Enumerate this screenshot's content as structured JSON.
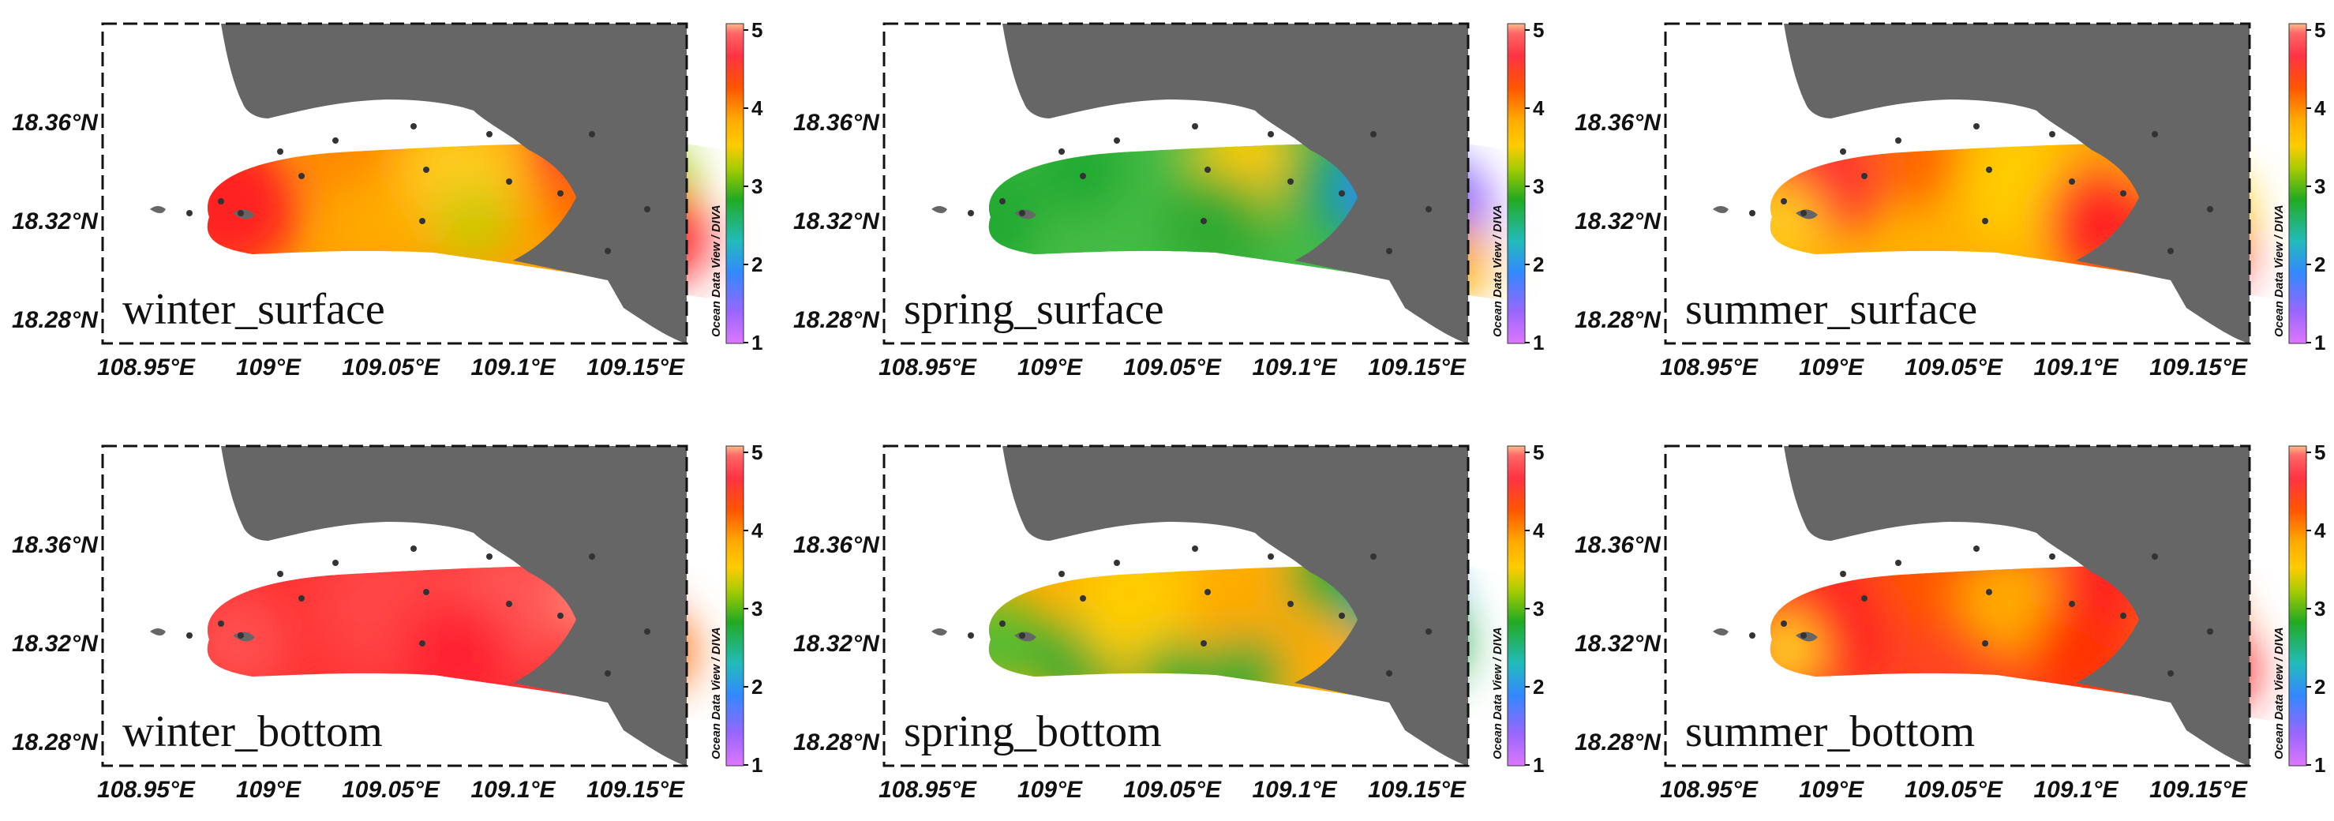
{
  "colors": {
    "land": "#666666",
    "station": "#333333",
    "colorscale": [
      "#cc66ff",
      "#7f66ff",
      "#3399ff",
      "#22b8a8",
      "#22aa22",
      "#99cc00",
      "#ffcc00",
      "#ffaa00",
      "#ff6600",
      "#ff3333",
      "#ff5555",
      "#ffaa77"
    ]
  },
  "axes": {
    "y_ticks": [
      "18.36°N",
      "18.32°N",
      "18.28°N"
    ],
    "x_ticks": [
      "108.95°E",
      "109°E",
      "109.05°E",
      "109.1°E",
      "109.15°E"
    ]
  },
  "colorbar": {
    "ticks": [
      "5",
      "4",
      "3",
      "2",
      "1"
    ],
    "credit": "Ocean Data View / DIVA"
  },
  "panels": [
    {
      "label": "winter_surface",
      "id": "winter-surface"
    },
    {
      "label": "spring_surface",
      "id": "spring-surface"
    },
    {
      "label": "summer_surface",
      "id": "summer-surface"
    },
    {
      "label": "winter_bottom",
      "id": "winter-bottom"
    },
    {
      "label": "spring_bottom",
      "id": "spring-bottom"
    },
    {
      "label": "summer_bottom",
      "id": "summer-bottom"
    }
  ],
  "chart_data": [
    {
      "type": "heatmap",
      "title": "winter_surface",
      "colorbar_range": [
        1,
        5
      ],
      "dominant_range": [
        3.5,
        4.6
      ]
    },
    {
      "type": "heatmap",
      "title": "spring_surface",
      "colorbar_range": [
        1,
        5
      ],
      "dominant_range": [
        1.5,
        3.8
      ]
    },
    {
      "type": "heatmap",
      "title": "summer_surface",
      "colorbar_range": [
        1,
        5
      ],
      "dominant_range": [
        3.4,
        4.5
      ]
    },
    {
      "type": "heatmap",
      "title": "winter_bottom",
      "colorbar_range": [
        1,
        5
      ],
      "dominant_range": [
        3.9,
        4.8
      ]
    },
    {
      "type": "heatmap",
      "title": "spring_bottom",
      "colorbar_range": [
        1,
        5
      ],
      "dominant_range": [
        2.3,
        3.9
      ]
    },
    {
      "type": "heatmap",
      "title": "summer_bottom",
      "colorbar_range": [
        1,
        5
      ],
      "dominant_range": [
        3.6,
        4.6
      ]
    }
  ]
}
